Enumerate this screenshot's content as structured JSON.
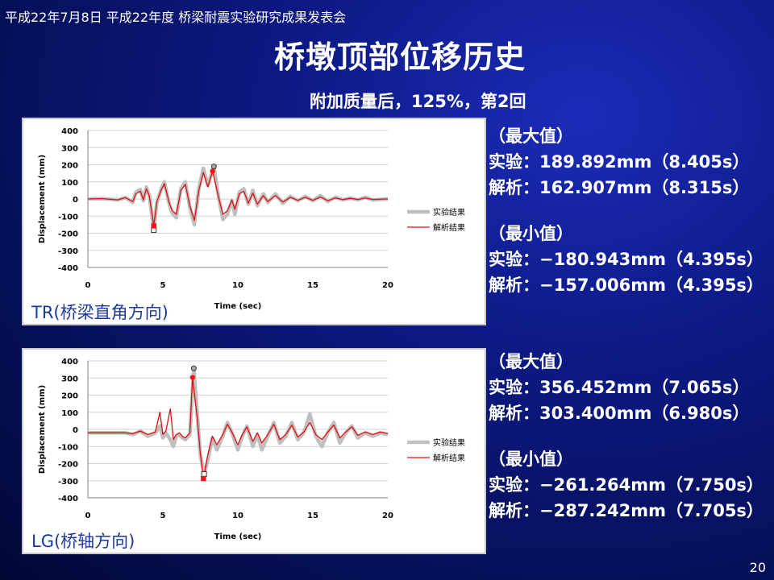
{
  "header": "平成22年7月8日 平成22年度 桥梁耐震实验研究成果发表会",
  "title": "桥墩顶部位移历史",
  "subtitle": "附加质量后，125%，第2回",
  "page_number": "20",
  "colors": {
    "exp": "#bfbfbf",
    "ana": "#e01010",
    "label": "#1a3aa0"
  },
  "charts": [
    {
      "label": "TR(桥梁直角方向)",
      "stats": {
        "max_header": "（最大值）",
        "max_exp": "实验：189.892mm（8.405s）",
        "max_ana": "解析：162.907mm（8.315s）",
        "min_header": "（最小值）",
        "min_exp": "实验：−180.943mm（4.395s）",
        "min_ana": "解析：−157.006mm（4.395s）"
      }
    },
    {
      "label": "LG(桥轴方向)",
      "stats": {
        "max_header": "（最大值）",
        "max_exp": "实验：356.452mm（7.065s）",
        "max_ana": "解析：303.400mm（6.980s）",
        "min_header": "（最小值）",
        "min_exp": "实验：−261.264mm（7.750s）",
        "min_ana": "解析：−287.242mm（7.705s）"
      }
    }
  ],
  "chart_data": [
    {
      "type": "line",
      "xlabel": "Time (sec)",
      "ylabel": "Displacement (mm)",
      "xlim": [
        0,
        20
      ],
      "ylim": [
        -400,
        400
      ],
      "xticks": [
        0,
        5,
        10,
        15,
        20
      ],
      "yticks": [
        400,
        300,
        200,
        100,
        0,
        -100,
        -200,
        -300,
        -400
      ],
      "grid": true,
      "legend": "right",
      "series": [
        {
          "name": "实验结果",
          "style": "exp",
          "points": [
            [
              0,
              0
            ],
            [
              1,
              2
            ],
            [
              2,
              -5
            ],
            [
              2.5,
              8
            ],
            [
              3,
              -20
            ],
            [
              3.2,
              40
            ],
            [
              3.5,
              55
            ],
            [
              3.7,
              -10
            ],
            [
              3.9,
              70
            ],
            [
              4.1,
              20
            ],
            [
              4.3,
              -120
            ],
            [
              4.395,
              -180.9
            ],
            [
              4.6,
              -20
            ],
            [
              4.9,
              60
            ],
            [
              5.1,
              100
            ],
            [
              5.4,
              -20
            ],
            [
              5.6,
              -80
            ],
            [
              5.9,
              -110
            ],
            [
              6.2,
              60
            ],
            [
              6.5,
              100
            ],
            [
              6.8,
              -50
            ],
            [
              7.1,
              -150
            ],
            [
              7.4,
              60
            ],
            [
              7.7,
              180
            ],
            [
              8.0,
              80
            ],
            [
              8.405,
              189.9
            ],
            [
              8.7,
              20
            ],
            [
              9.0,
              -120
            ],
            [
              9.3,
              -90
            ],
            [
              9.6,
              -10
            ],
            [
              9.8,
              -90
            ],
            [
              10.1,
              40
            ],
            [
              10.4,
              60
            ],
            [
              10.7,
              -30
            ],
            [
              11,
              50
            ],
            [
              11.3,
              -40
            ],
            [
              11.7,
              30
            ],
            [
              12,
              -20
            ],
            [
              12.5,
              30
            ],
            [
              13,
              -25
            ],
            [
              13.5,
              15
            ],
            [
              14,
              -10
            ],
            [
              14.5,
              15
            ],
            [
              15,
              -10
            ],
            [
              15.5,
              20
            ],
            [
              16,
              -15
            ],
            [
              16.5,
              10
            ],
            [
              17,
              -5
            ],
            [
              17.5,
              5
            ],
            [
              18,
              -5
            ],
            [
              18.5,
              10
            ],
            [
              19,
              -5
            ],
            [
              20,
              0
            ]
          ]
        },
        {
          "name": "解析结果",
          "style": "ana",
          "points": [
            [
              0,
              0
            ],
            [
              1,
              2
            ],
            [
              2,
              -5
            ],
            [
              2.5,
              8
            ],
            [
              3,
              -15
            ],
            [
              3.2,
              30
            ],
            [
              3.5,
              45
            ],
            [
              3.7,
              -5
            ],
            [
              3.9,
              60
            ],
            [
              4.1,
              15
            ],
            [
              4.3,
              -100
            ],
            [
              4.395,
              -157.0
            ],
            [
              4.6,
              -15
            ],
            [
              4.9,
              55
            ],
            [
              5.1,
              90
            ],
            [
              5.4,
              -15
            ],
            [
              5.6,
              -65
            ],
            [
              5.9,
              -90
            ],
            [
              6.2,
              50
            ],
            [
              6.5,
              85
            ],
            [
              6.8,
              -40
            ],
            [
              7.1,
              -125
            ],
            [
              7.4,
              50
            ],
            [
              7.7,
              155
            ],
            [
              8.0,
              70
            ],
            [
              8.315,
              162.9
            ],
            [
              8.7,
              15
            ],
            [
              9.0,
              -90
            ],
            [
              9.3,
              -70
            ],
            [
              9.6,
              -5
            ],
            [
              9.8,
              -60
            ],
            [
              10.1,
              30
            ],
            [
              10.4,
              45
            ],
            [
              10.7,
              -25
            ],
            [
              11,
              35
            ],
            [
              11.3,
              -30
            ],
            [
              11.7,
              20
            ],
            [
              12,
              -15
            ],
            [
              12.5,
              20
            ],
            [
              13,
              -18
            ],
            [
              13.5,
              10
            ],
            [
              14,
              -8
            ],
            [
              14.5,
              10
            ],
            [
              15,
              -8
            ],
            [
              15.5,
              12
            ],
            [
              16,
              -10
            ],
            [
              16.5,
              6
            ],
            [
              17,
              -4
            ],
            [
              17.5,
              4
            ],
            [
              18,
              -3
            ],
            [
              18.5,
              6
            ],
            [
              19,
              -3
            ],
            [
              20,
              0
            ]
          ]
        }
      ],
      "markers": [
        {
          "x": 8.405,
          "y": 189.9,
          "series": "exp"
        },
        {
          "x": 8.315,
          "y": 162.9,
          "series": "ana"
        },
        {
          "x": 4.395,
          "y": -180.9,
          "series": "exp"
        },
        {
          "x": 4.395,
          "y": -157.0,
          "series": "ana"
        }
      ]
    },
    {
      "type": "line",
      "xlabel": "Time (sec)",
      "ylabel": "Displacement (mm)",
      "xlim": [
        0,
        20
      ],
      "ylim": [
        -400,
        400
      ],
      "xticks": [
        0,
        5,
        10,
        15,
        20
      ],
      "yticks": [
        400,
        300,
        200,
        100,
        0,
        -100,
        -200,
        -300,
        -400
      ],
      "grid": true,
      "legend": "right",
      "series": [
        {
          "name": "实验结果",
          "style": "exp",
          "points": [
            [
              0,
              -20
            ],
            [
              2,
              -20
            ],
            [
              2.5,
              -20
            ],
            [
              3,
              -30
            ],
            [
              3.5,
              -10
            ],
            [
              4,
              -40
            ],
            [
              4.5,
              -20
            ],
            [
              4.8,
              20
            ],
            [
              5,
              -50
            ],
            [
              5.2,
              -20
            ],
            [
              5.5,
              -60
            ],
            [
              5.7,
              -100
            ],
            [
              5.9,
              -40
            ],
            [
              6.1,
              -30
            ],
            [
              6.3,
              -50
            ],
            [
              6.5,
              -60
            ],
            [
              6.8,
              -30
            ],
            [
              7.065,
              356.5
            ],
            [
              7.3,
              80
            ],
            [
              7.5,
              -150
            ],
            [
              7.75,
              -261.3
            ],
            [
              8.0,
              -180
            ],
            [
              8.3,
              -50
            ],
            [
              8.6,
              -120
            ],
            [
              9,
              -40
            ],
            [
              9.3,
              40
            ],
            [
              9.6,
              -20
            ],
            [
              10,
              -120
            ],
            [
              10.3,
              -40
            ],
            [
              10.6,
              20
            ],
            [
              11,
              -100
            ],
            [
              11.3,
              -30
            ],
            [
              11.6,
              -120
            ],
            [
              12,
              -40
            ],
            [
              12.4,
              40
            ],
            [
              12.8,
              -80
            ],
            [
              13.2,
              -40
            ],
            [
              13.6,
              40
            ],
            [
              14,
              -60
            ],
            [
              14.4,
              -20
            ],
            [
              14.8,
              90
            ],
            [
              15.2,
              -40
            ],
            [
              15.6,
              -100
            ],
            [
              16,
              -20
            ],
            [
              16.4,
              40
            ],
            [
              16.8,
              -80
            ],
            [
              17.2,
              -20
            ],
            [
              17.6,
              20
            ],
            [
              18,
              -50
            ],
            [
              18.5,
              -20
            ],
            [
              19,
              -40
            ],
            [
              19.5,
              -20
            ],
            [
              20,
              -30
            ]
          ]
        },
        {
          "name": "解析结果",
          "style": "ana",
          "points": [
            [
              0,
              -20
            ],
            [
              2,
              -20
            ],
            [
              2.5,
              -20
            ],
            [
              3,
              -25
            ],
            [
              3.5,
              -10
            ],
            [
              4,
              -30
            ],
            [
              4.5,
              -15
            ],
            [
              4.8,
              100
            ],
            [
              5,
              -30
            ],
            [
              5.2,
              -10
            ],
            [
              5.5,
              120
            ],
            [
              5.7,
              -60
            ],
            [
              5.9,
              -30
            ],
            [
              6.1,
              -20
            ],
            [
              6.3,
              -40
            ],
            [
              6.5,
              -50
            ],
            [
              6.8,
              -20
            ],
            [
              6.98,
              303.4
            ],
            [
              7.3,
              60
            ],
            [
              7.5,
              -140
            ],
            [
              7.705,
              -287.2
            ],
            [
              8.0,
              -150
            ],
            [
              8.3,
              -40
            ],
            [
              8.6,
              -90
            ],
            [
              9,
              -30
            ],
            [
              9.3,
              30
            ],
            [
              9.6,
              -15
            ],
            [
              10,
              -90
            ],
            [
              10.3,
              -30
            ],
            [
              10.6,
              15
            ],
            [
              11,
              -70
            ],
            [
              11.3,
              -20
            ],
            [
              11.6,
              -80
            ],
            [
              12,
              -30
            ],
            [
              12.4,
              30
            ],
            [
              12.8,
              -60
            ],
            [
              13.2,
              -30
            ],
            [
              13.6,
              25
            ],
            [
              14,
              -45
            ],
            [
              14.4,
              -15
            ],
            [
              14.8,
              40
            ],
            [
              15.2,
              -30
            ],
            [
              15.6,
              -60
            ],
            [
              16,
              -15
            ],
            [
              16.4,
              25
            ],
            [
              16.8,
              -50
            ],
            [
              17.2,
              -15
            ],
            [
              17.6,
              15
            ],
            [
              18,
              -35
            ],
            [
              18.5,
              -15
            ],
            [
              19,
              -30
            ],
            [
              19.5,
              -15
            ],
            [
              20,
              -25
            ]
          ]
        }
      ],
      "markers": [
        {
          "x": 7.065,
          "y": 356.5,
          "series": "exp"
        },
        {
          "x": 6.98,
          "y": 303.4,
          "series": "ana"
        },
        {
          "x": 7.75,
          "y": -261.3,
          "series": "exp"
        },
        {
          "x": 7.705,
          "y": -287.2,
          "series": "ana"
        }
      ]
    }
  ]
}
